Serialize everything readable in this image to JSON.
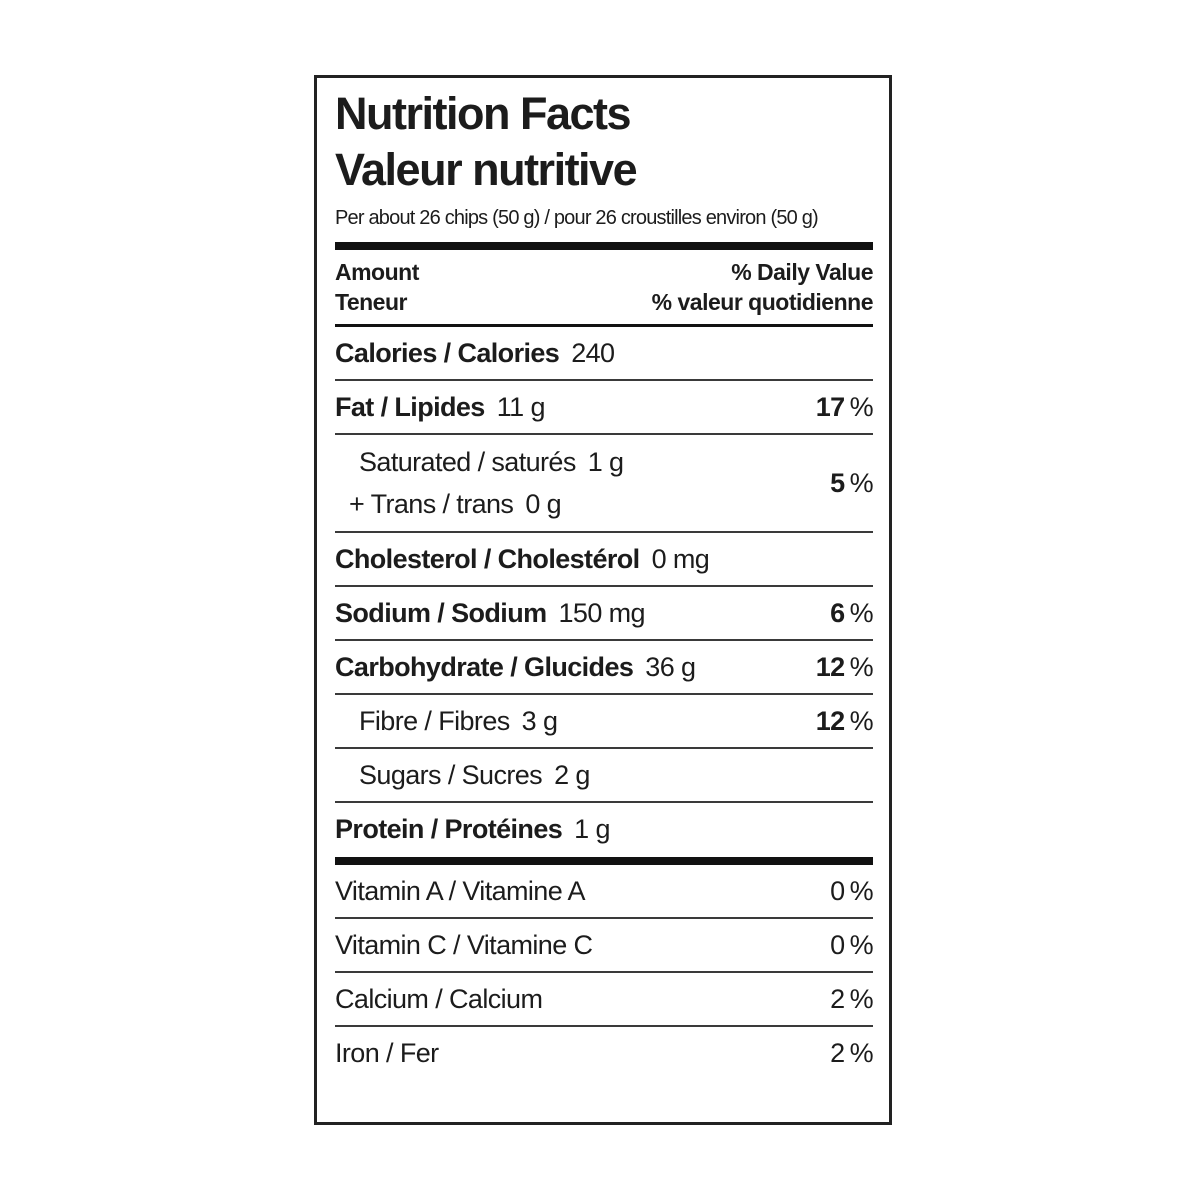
{
  "label": {
    "title_en": "Nutrition Facts",
    "title_fr": "Valeur nutritive",
    "serving": "Per about 26 chips (50 g) / pour 26 croustilles environ (50 g)",
    "columns": {
      "amount_en": "Amount",
      "amount_fr": "Teneur",
      "daily_value_en": "% Daily Value",
      "daily_value_fr": "% valeur quotidienne"
    },
    "rows": {
      "calories": {
        "name": "Calories / Calories",
        "amount": "240"
      },
      "fat": {
        "name": "Fat / Lipides",
        "amount": "11 g",
        "dv": "17",
        "dv_unit": "%"
      },
      "saturated": {
        "name": "Saturated / saturés",
        "amount": "1 g"
      },
      "trans": {
        "name": "+ Trans / trans",
        "amount": "0 g"
      },
      "sat_trans_dv": {
        "dv": "5",
        "dv_unit": "%"
      },
      "cholesterol": {
        "name": "Cholesterol / Cholestérol",
        "amount": "0 mg"
      },
      "sodium": {
        "name": "Sodium / Sodium",
        "amount": "150 mg",
        "dv": "6",
        "dv_unit": "%"
      },
      "carbohydrate": {
        "name": "Carbohydrate / Glucides",
        "amount": "36 g",
        "dv": "12",
        "dv_unit": "%"
      },
      "fibre": {
        "name": "Fibre / Fibres",
        "amount": "3 g",
        "dv": "12",
        "dv_unit": "%"
      },
      "sugars": {
        "name": "Sugars / Sucres",
        "amount": "2 g"
      },
      "protein": {
        "name": "Protein / Protéines",
        "amount": "1 g"
      },
      "vitamin_a": {
        "name": "Vitamin A / Vitamine A",
        "dv": "0",
        "dv_unit": "%"
      },
      "vitamin_c": {
        "name": "Vitamin C / Vitamine C",
        "dv": "0",
        "dv_unit": "%"
      },
      "calcium": {
        "name": "Calcium / Calcium",
        "dv": "2",
        "dv_unit": "%"
      },
      "iron": {
        "name": "Iron / Fer",
        "dv": "2",
        "dv_unit": "%"
      }
    },
    "colors": {
      "text": "#1c1c1c",
      "border": "#222222",
      "background": "#ffffff"
    }
  }
}
